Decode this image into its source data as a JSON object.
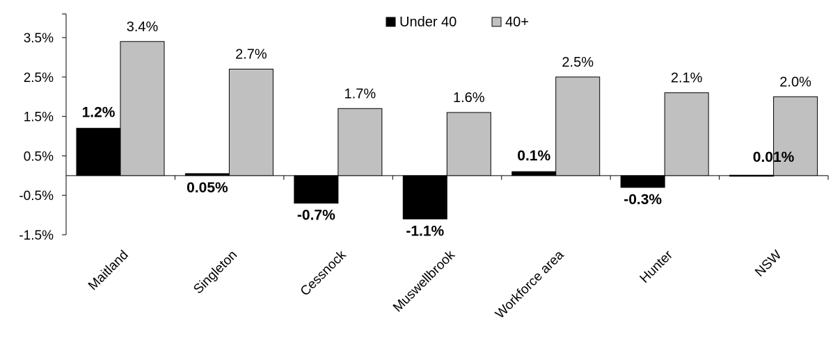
{
  "chart_data": {
    "type": "bar",
    "categories": [
      "Maitland",
      "Singleton",
      "Cessnock",
      "Muswellbrook",
      "Workforce area",
      "Hunter",
      "NSW"
    ],
    "series": [
      {
        "name": "Under 40",
        "values": [
          1.2,
          0.05,
          -0.7,
          -1.1,
          0.1,
          -0.3,
          0.01
        ],
        "labels": [
          "1.2%",
          "0.05%",
          "-0.7%",
          "-1.1%",
          "0.1%",
          "-0.3%",
          "0.01%"
        ],
        "color": "#000000"
      },
      {
        "name": "40+",
        "values": [
          3.4,
          2.7,
          1.7,
          1.6,
          2.5,
          2.1,
          2.0
        ],
        "labels": [
          "3.4%",
          "2.7%",
          "1.7%",
          "1.6%",
          "2.5%",
          "2.1%",
          "2.0%"
        ],
        "color": "#c0c0c0"
      }
    ],
    "y_ticks": [
      3.5,
      2.5,
      1.5,
      0.5,
      -0.5,
      -1.5
    ],
    "y_tick_labels": [
      "3.5%",
      "2.5%",
      "1.5%",
      "0.5%",
      "-0.5%",
      "-1.5%"
    ],
    "ylim": [
      -1.5,
      4.1
    ],
    "legend_position": "top-center",
    "grid": false
  }
}
